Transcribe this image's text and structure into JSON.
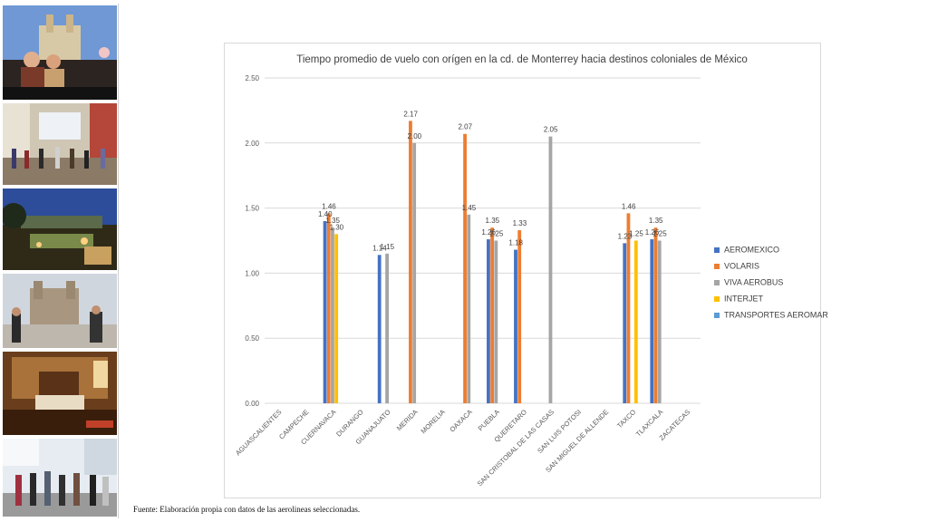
{
  "chart_data": {
    "type": "bar",
    "title": "Tiempo promedio de vuelo con orígen en la cd. de Monterrey hacia destinos coloniales de México",
    "xlabel": "",
    "ylabel": "",
    "ylim": [
      0,
      2.5
    ],
    "y_ticks": [
      "0.00",
      "0.50",
      "1.00",
      "1.50",
      "2.00",
      "2.50"
    ],
    "categories": [
      "AGUASCALIENTES",
      "CAMPECHE",
      "CUERNAVACA",
      "DURANGO",
      "GUANAJUATO",
      "MERIDA",
      "MORELIA",
      "OAXACA",
      "PUEBLA",
      "QUERETARO",
      "SAN CRISTOBAL DE LAS CASAS",
      "SAN LUIS POTOSI",
      "SAN MIGUEL DE ALLENDE",
      "TAXCO",
      "TLAXCALA",
      "ZACATECAS"
    ],
    "series": [
      {
        "name": "AEROMEXICO",
        "color": "#4472c4",
        "values": [
          null,
          null,
          1.4,
          null,
          1.14,
          null,
          null,
          null,
          1.26,
          1.18,
          null,
          null,
          null,
          1.23,
          1.26,
          null
        ],
        "labels": [
          null,
          null,
          "1.40",
          null,
          "1.14",
          null,
          null,
          null,
          "1.26",
          "1.18",
          null,
          null,
          null,
          "1.23",
          "1.26",
          null
        ]
      },
      {
        "name": "VOLARIS",
        "color": "#ed7d31",
        "values": [
          null,
          null,
          1.46,
          null,
          null,
          2.17,
          null,
          2.07,
          1.35,
          1.33,
          null,
          null,
          null,
          1.46,
          1.35,
          null
        ],
        "labels": [
          null,
          null,
          "1.46",
          null,
          null,
          "2.17",
          null,
          "2.07",
          "1.35",
          "1.33",
          null,
          null,
          null,
          "1.46",
          "1.35",
          null
        ]
      },
      {
        "name": "VIVA AEROBUS",
        "color": "#a5a5a5",
        "values": [
          null,
          null,
          1.35,
          null,
          1.15,
          2.0,
          null,
          1.45,
          1.25,
          null,
          2.05,
          null,
          null,
          null,
          1.25,
          null
        ],
        "labels": [
          null,
          null,
          "1.35",
          null,
          "1.15",
          "2.00",
          null,
          "1.45",
          "1.25",
          null,
          "2.05",
          null,
          null,
          null,
          "1.25",
          null
        ]
      },
      {
        "name": "INTERJET",
        "color": "#ffc000",
        "values": [
          null,
          null,
          1.3,
          null,
          null,
          null,
          null,
          null,
          null,
          null,
          null,
          null,
          null,
          1.25,
          null,
          null
        ],
        "labels": [
          null,
          null,
          "1.30",
          null,
          null,
          null,
          null,
          null,
          null,
          null,
          null,
          null,
          null,
          "1.25",
          null,
          null
        ]
      },
      {
        "name": "TRANSPORTES AEROMAR",
        "color": "#5b9bd5",
        "values": [
          null,
          null,
          null,
          null,
          null,
          null,
          null,
          null,
          null,
          null,
          null,
          null,
          null,
          null,
          null,
          null
        ],
        "labels": [
          null,
          null,
          null,
          null,
          null,
          null,
          null,
          null,
          null,
          null,
          null,
          null,
          null,
          null,
          null,
          null
        ]
      }
    ],
    "grid": true,
    "legend_position": "right"
  },
  "footer": {
    "source": "Fuente: Elaboración propia con datos de las aerolineas seleccionadas."
  },
  "photos": [
    {
      "name": "rooftop-couple-photo",
      "top": "#5b84c4",
      "bottom": "#3a2a22"
    },
    {
      "name": "pedestrian-street-photo",
      "top": "#d9d4c8",
      "bottom": "#6d5a4a"
    },
    {
      "name": "night-terrace-photo",
      "top": "#27428a",
      "bottom": "#3b4420"
    },
    {
      "name": "church-plaza-photo",
      "top": "#c9d2dc",
      "bottom": "#8c8378"
    },
    {
      "name": "hotel-room-photo",
      "top": "#8a5a2c",
      "bottom": "#4a2a14"
    },
    {
      "name": "mall-crowd-photo",
      "top": "#e8eef4",
      "bottom": "#6a6a6a"
    }
  ]
}
